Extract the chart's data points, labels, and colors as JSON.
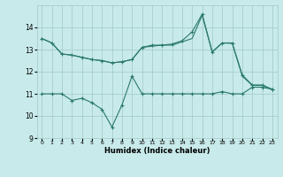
{
  "x": [
    0,
    1,
    2,
    3,
    4,
    5,
    6,
    7,
    8,
    9,
    10,
    11,
    12,
    13,
    14,
    15,
    16,
    17,
    18,
    19,
    20,
    21,
    22,
    23
  ],
  "line1": [
    13.5,
    13.3,
    12.8,
    12.75,
    12.65,
    12.55,
    12.5,
    12.4,
    12.45,
    12.55,
    13.1,
    13.2,
    13.2,
    13.25,
    13.4,
    13.8,
    14.6,
    12.9,
    13.3,
    13.3,
    11.85,
    11.4,
    11.4,
    11.2
  ],
  "line2": [
    13.5,
    13.3,
    12.8,
    12.75,
    12.65,
    12.55,
    12.5,
    12.4,
    12.45,
    12.55,
    13.1,
    13.15,
    13.2,
    13.2,
    13.35,
    13.5,
    14.55,
    12.88,
    13.3,
    13.28,
    11.8,
    11.38,
    11.38,
    11.2
  ],
  "line3": [
    11.0,
    11.0,
    11.0,
    10.7,
    10.8,
    10.6,
    10.3,
    9.5,
    10.5,
    11.8,
    11.0,
    11.0,
    11.0,
    11.0,
    11.0,
    11.0,
    11.0,
    11.0,
    11.1,
    11.0,
    11.0,
    11.3,
    11.3,
    11.2
  ],
  "line_color": "#2a7a6a",
  "bg_color": "#c8eaea",
  "grid_color": "#a0c8c8",
  "xlabel": "Humidex (Indice chaleur)",
  "ylim": [
    9,
    15
  ],
  "xlim": [
    -0.5,
    23.5
  ],
  "yticks": [
    9,
    10,
    11,
    12,
    13,
    14
  ],
  "xticks": [
    0,
    1,
    2,
    3,
    4,
    5,
    6,
    7,
    8,
    9,
    10,
    11,
    12,
    13,
    14,
    15,
    16,
    17,
    18,
    19,
    20,
    21,
    22,
    23
  ]
}
